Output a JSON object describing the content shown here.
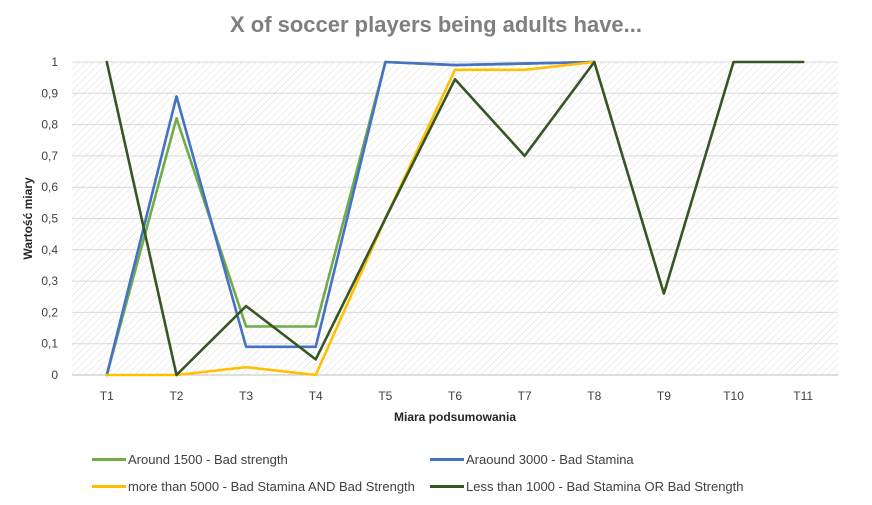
{
  "chart_data": {
    "type": "line",
    "title": "X of soccer players being adults have...",
    "xlabel": "Miara podsumowania",
    "ylabel": "Wartość miary",
    "categories": [
      "T1",
      "T2",
      "T3",
      "T4",
      "T5",
      "T6",
      "T7",
      "T8",
      "T9",
      "T10",
      "T11"
    ],
    "ylim": [
      0,
      1
    ],
    "yticks": [
      "0",
      "0,1",
      "0,2",
      "0,3",
      "0,4",
      "0,5",
      "0,6",
      "0,7",
      "0,8",
      "0,9",
      "1"
    ],
    "grid": true,
    "legend_position": "bottom",
    "series": [
      {
        "name": "Around 1500 - Bad strength",
        "color": "#70ad47",
        "values": [
          0,
          0.82,
          0.155,
          0.155,
          1.0,
          0.99,
          0.995,
          1.0,
          null,
          null,
          null
        ]
      },
      {
        "name": "Araound 3000 - Bad Stamina",
        "color": "#4472c4",
        "values": [
          0,
          0.89,
          0.09,
          0.09,
          1.0,
          0.99,
          0.995,
          1.0,
          null,
          null,
          null
        ]
      },
      {
        "name": "more than 5000 - Bad Stamina AND Bad Strength",
        "color": "#ffc000",
        "values": [
          0,
          0,
          0.025,
          0,
          0.5,
          0.975,
          0.975,
          1.0,
          null,
          null,
          null
        ]
      },
      {
        "name": "Less than 1000 - Bad Stamina OR Bad Strength",
        "color": "#375623",
        "values": [
          1.0,
          0,
          0.22,
          0.05,
          0.5,
          0.945,
          0.7,
          1.0,
          0.26,
          1.0,
          1.0
        ]
      }
    ]
  }
}
